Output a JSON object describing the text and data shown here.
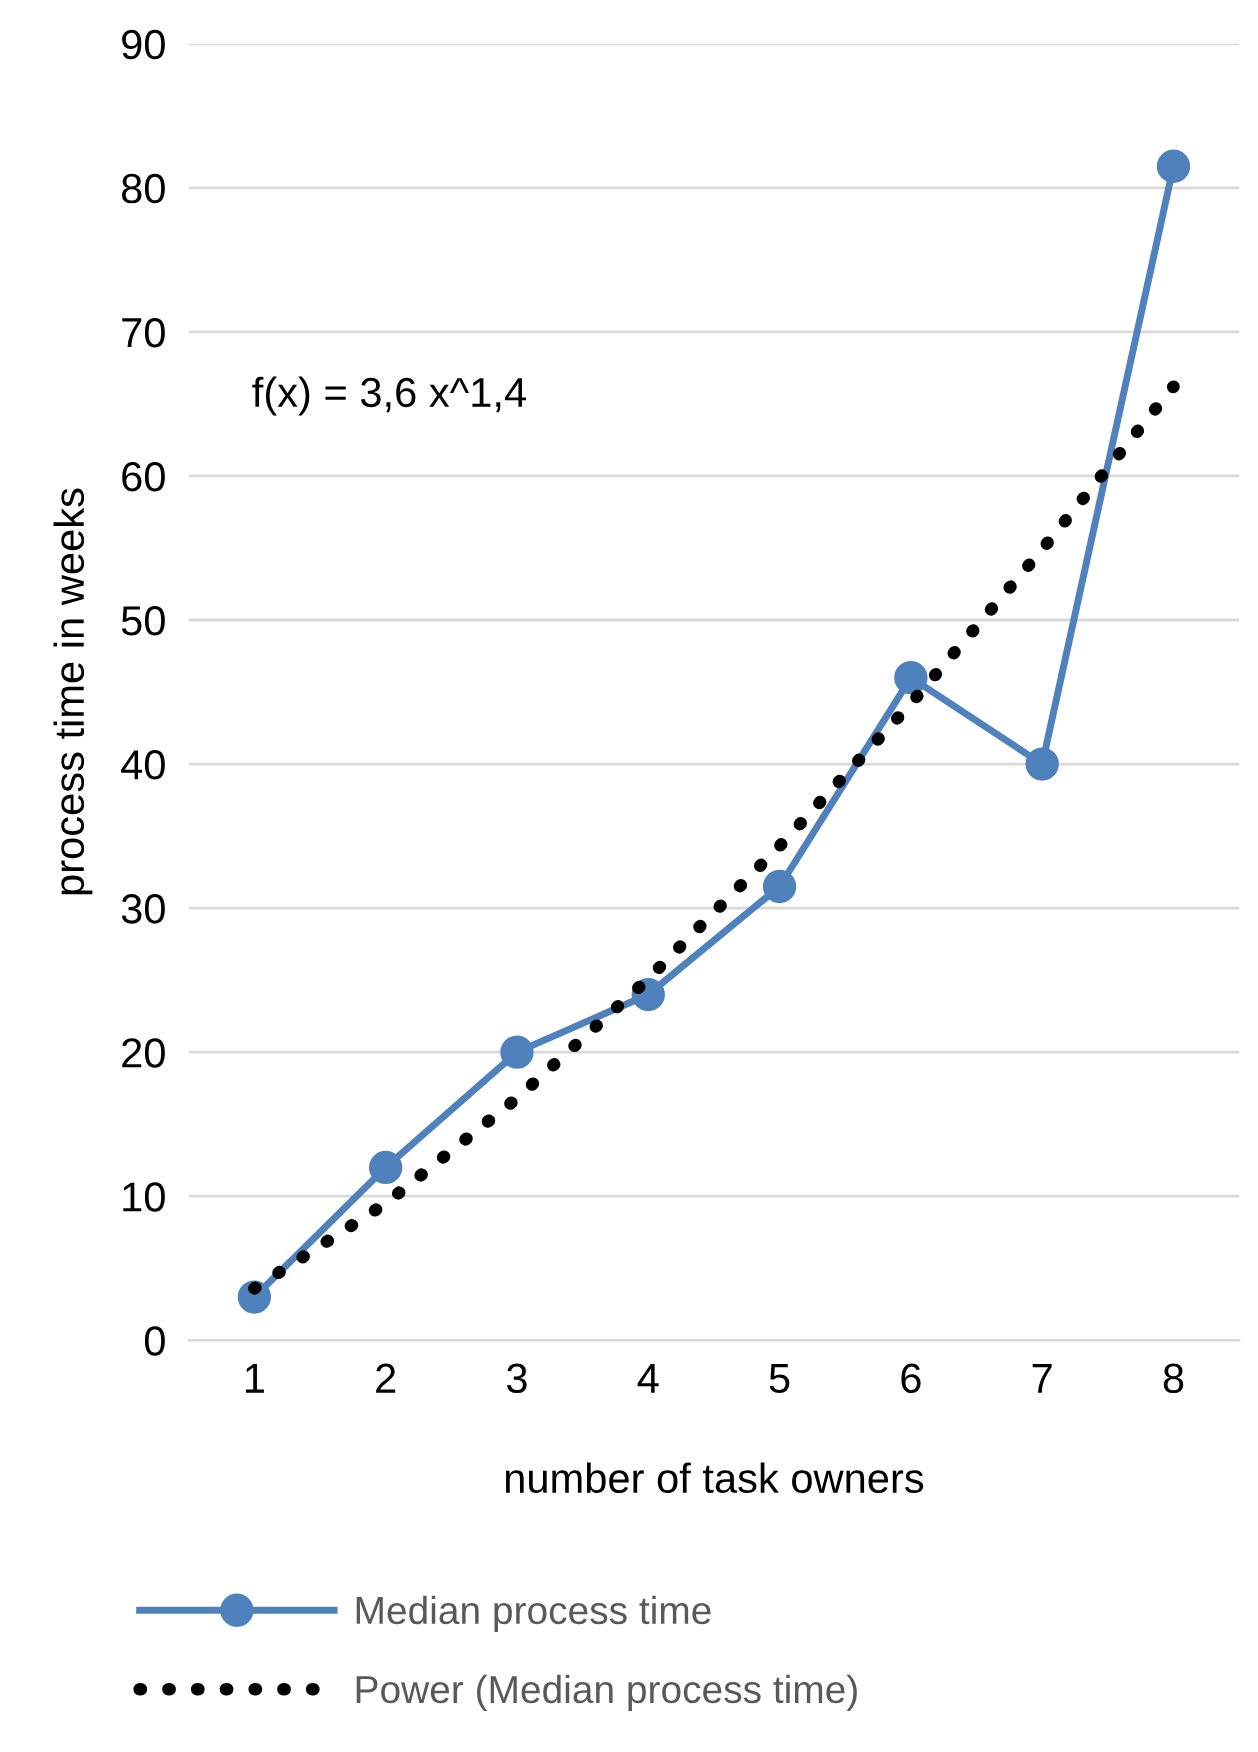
{
  "chart_data": {
    "type": "line",
    "xlabel": "number of task owners",
    "ylabel": "process time in weeks",
    "categories": [
      "1",
      "2",
      "3",
      "4",
      "5",
      "6",
      "7",
      "8"
    ],
    "series": [
      {
        "name": "Median process time",
        "color": "#4f81bd",
        "values": [
          3,
          12,
          20,
          24,
          31.5,
          46,
          40,
          81.5
        ],
        "marker": "circle",
        "line_style": "solid"
      },
      {
        "name": "Power (Median process time)",
        "color": "#000000",
        "values": [
          3.6,
          9.5,
          16.8,
          25.1,
          34.3,
          44.2,
          54.9,
          66.2
        ],
        "marker": "none",
        "line_style": "dotted"
      }
    ],
    "ylim": [
      0,
      90
    ],
    "yticks": [
      0,
      10,
      20,
      30,
      40,
      50,
      60,
      70,
      80,
      90
    ],
    "grid": "y",
    "legend": "bottom",
    "annotations": [
      "f(x) = 3,6 x^1,4"
    ]
  }
}
